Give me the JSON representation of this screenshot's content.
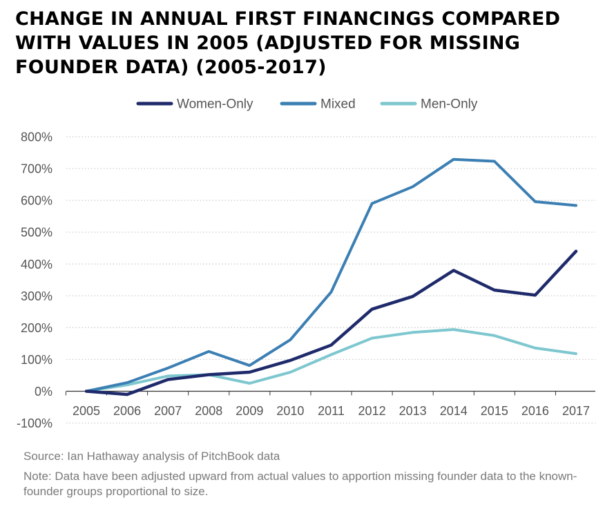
{
  "title_lines": [
    "CHANGE IN ANNUAL FIRST FINANCINGS COMPARED",
    "WITH VALUES IN 2005 (ADJUSTED FOR MISSING",
    "FOUNDER DATA) (2005-2017)"
  ],
  "source": "Source: Ian Hathaway analysis of PitchBook data",
  "note": "Note: Data have been adjusted upward from actual values to apportion missing founder data to the known-founder groups proportional to size.",
  "chart_data": {
    "type": "line",
    "title": "Change in Annual First Financings Compared with Values in 2005 (Adjusted for Missing Founder Data) (2005-2017)",
    "xlabel": "",
    "ylabel": "",
    "categories": [
      "2005",
      "2006",
      "2007",
      "2008",
      "2009",
      "2010",
      "2011",
      "2012",
      "2013",
      "2014",
      "2015",
      "2016",
      "2017"
    ],
    "ylim": [
      -100,
      800
    ],
    "yticks": [
      -100,
      0,
      100,
      200,
      300,
      400,
      500,
      600,
      700,
      800
    ],
    "ytick_labels": [
      "-100%",
      "0%",
      "100%",
      "200%",
      "300%",
      "400%",
      "500%",
      "600%",
      "700%",
      "800%"
    ],
    "grid": true,
    "legend_position": "top-center",
    "series": [
      {
        "name": "Women-Only",
        "color": "#1f2a6b",
        "values": [
          0,
          -10,
          37,
          52,
          60,
          97,
          145,
          258,
          298,
          380,
          318,
          302,
          440
        ]
      },
      {
        "name": "Mixed",
        "color": "#3b7fb3",
        "values": [
          0,
          27,
          73,
          125,
          81,
          162,
          312,
          590,
          643,
          729,
          723,
          596,
          584
        ]
      },
      {
        "name": "Men-Only",
        "color": "#7ec7cf",
        "values": [
          0,
          20,
          48,
          52,
          25,
          60,
          115,
          167,
          185,
          194,
          175,
          136,
          118
        ]
      }
    ]
  }
}
